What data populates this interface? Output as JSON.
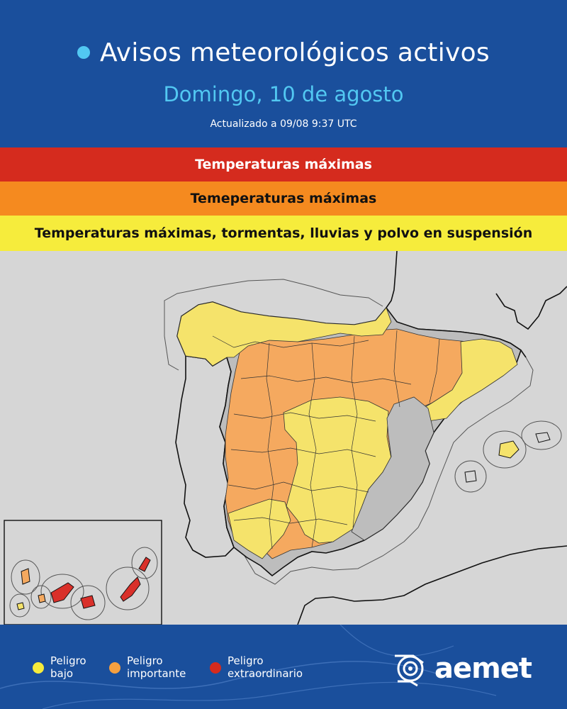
{
  "header": {
    "title": "Avisos meteorológicos activos",
    "date": "Domingo, 10 de agosto",
    "updated": "Actualizado a 09/08  9:37 UTC"
  },
  "bands": [
    {
      "label": "Temperaturas máximas",
      "level": "extraordinario",
      "color": "#d52b1e"
    },
    {
      "label": "Temeperaturas máximas",
      "level": "importante",
      "color": "#f58a1f"
    },
    {
      "label": "Temperaturas máximas, tormentas, lluvias y polvo en suspensión",
      "level": "bajo",
      "color": "#f6ec3c"
    }
  ],
  "map": {
    "colors": {
      "sea": "#d6d6d6",
      "none": "#bdbdbd",
      "bajo": "#f5e36b",
      "importante": "#f5a95f",
      "extraordinario": "#d9302a"
    }
  },
  "legend": [
    {
      "label": "Peligro\nbajo",
      "color": "#f6ec3c"
    },
    {
      "label": "Peligro\nimportante",
      "color": "#f5a040"
    },
    {
      "label": "Peligro\nextraordinario",
      "color": "#d52b1e"
    }
  ],
  "logo": {
    "text": "aemet",
    "icon": "aemet-logo-icon"
  }
}
